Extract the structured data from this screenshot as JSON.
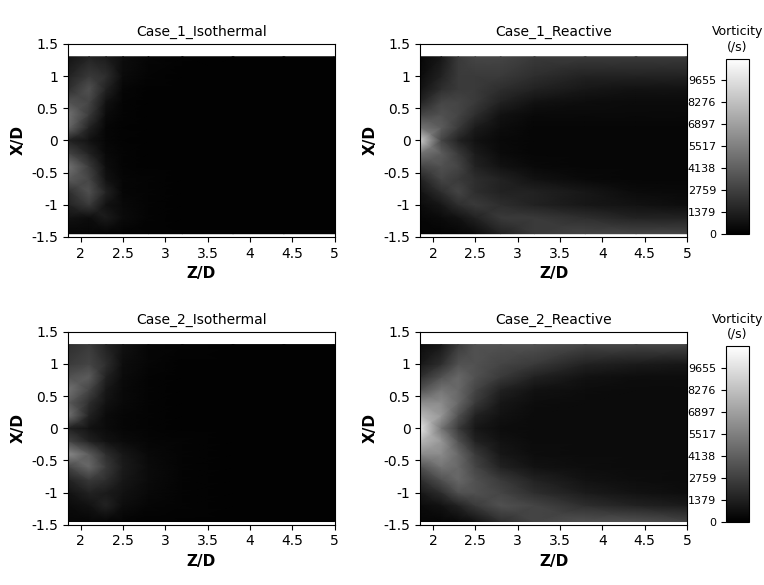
{
  "chart_data": [
    {
      "type": "heatmap",
      "title": "Case_1_Isothermal",
      "x_label": "Z/D",
      "y_label": "X/D",
      "xlim": [
        1.85,
        5
      ],
      "ylim": [
        -1.5,
        1.5
      ],
      "xticks": [
        2,
        2.5,
        3,
        3.5,
        4,
        4.5,
        5
      ],
      "yticks": [
        -1.5,
        -1,
        -0.5,
        0,
        0.5,
        1,
        1.5
      ],
      "x": [
        1.85,
        2.1,
        2.3,
        2.5,
        2.8,
        3.2,
        3.8,
        4.4,
        5.0
      ],
      "y": [
        -1.45,
        -1.2,
        -1.0,
        -0.8,
        -0.6,
        -0.4,
        -0.2,
        0,
        0.2,
        0.4,
        0.6,
        0.8,
        1.0,
        1.3
      ],
      "cells": [
        [
          300,
          300,
          200,
          150,
          100,
          100,
          100,
          100,
          100
        ],
        [
          800,
          600,
          1200,
          500,
          200,
          100,
          100,
          100,
          100
        ],
        [
          1500,
          2500,
          800,
          400,
          200,
          100,
          100,
          100,
          100
        ],
        [
          2000,
          3500,
          1500,
          300,
          200,
          100,
          100,
          100,
          100
        ],
        [
          4000,
          3000,
          800,
          300,
          200,
          100,
          100,
          100,
          100
        ],
        [
          5000,
          2500,
          600,
          200,
          100,
          100,
          100,
          100,
          100
        ],
        [
          3000,
          1500,
          400,
          200,
          100,
          100,
          100,
          100,
          100
        ],
        [
          1500,
          800,
          300,
          150,
          100,
          100,
          100,
          100,
          100
        ],
        [
          4500,
          1500,
          300,
          150,
          100,
          100,
          100,
          100,
          100
        ],
        [
          5000,
          2500,
          500,
          200,
          100,
          100,
          100,
          100,
          100
        ],
        [
          3500,
          3000,
          800,
          200,
          100,
          100,
          100,
          100,
          100
        ],
        [
          2000,
          3500,
          1500,
          300,
          100,
          100,
          100,
          100,
          100
        ],
        [
          1500,
          2500,
          2000,
          500,
          200,
          100,
          100,
          100,
          100
        ],
        [
          800,
          1500,
          1200,
          600,
          300,
          150,
          100,
          100,
          100
        ]
      ]
    },
    {
      "type": "heatmap",
      "title": "Case_1_Reactive",
      "x_label": "Z/D",
      "y_label": "X/D",
      "xlim": [
        1.85,
        5
      ],
      "ylim": [
        -1.5,
        1.5
      ],
      "xticks": [
        2,
        2.5,
        3,
        3.5,
        4,
        4.5,
        5
      ],
      "yticks": [
        -1.5,
        -1,
        -0.5,
        0,
        0.5,
        1,
        1.5
      ],
      "x": [
        1.85,
        2.1,
        2.3,
        2.5,
        2.8,
        3.2,
        3.8,
        4.4,
        5.0
      ],
      "y": [
        -1.45,
        -1.2,
        -1.0,
        -0.8,
        -0.6,
        -0.4,
        -0.2,
        0,
        0.2,
        0.4,
        0.6,
        0.8,
        1.0,
        1.3
      ],
      "cells": [
        [
          200,
          200,
          300,
          500,
          1500,
          2500,
          3000,
          3000,
          3000
        ],
        [
          300,
          500,
          800,
          1500,
          2500,
          2500,
          2000,
          1500,
          1500
        ],
        [
          500,
          1000,
          2000,
          2500,
          2000,
          1500,
          1000,
          800,
          600
        ],
        [
          800,
          2000,
          3000,
          2000,
          1500,
          1500,
          1000,
          500,
          400
        ],
        [
          1500,
          3000,
          2500,
          2000,
          1500,
          800,
          400,
          300,
          300
        ],
        [
          3000,
          3500,
          3000,
          1500,
          800,
          400,
          300,
          300,
          300
        ],
        [
          5000,
          4000,
          2500,
          1200,
          500,
          300,
          300,
          300,
          300
        ],
        [
          9000,
          3000,
          1500,
          800,
          400,
          300,
          300,
          300,
          300
        ],
        [
          5000,
          4000,
          2500,
          1200,
          600,
          300,
          300,
          300,
          300
        ],
        [
          3000,
          3500,
          3000,
          2000,
          800,
          400,
          400,
          400,
          400
        ],
        [
          1500,
          3000,
          3000,
          2500,
          1500,
          800,
          600,
          500,
          500
        ],
        [
          800,
          2000,
          2500,
          2500,
          2000,
          1500,
          1000,
          800,
          800
        ],
        [
          500,
          1500,
          2500,
          2500,
          2500,
          2000,
          1500,
          1500,
          1500
        ],
        [
          300,
          1000,
          2500,
          3000,
          3000,
          2500,
          2500,
          2500,
          2500
        ]
      ],
      "colorbar_label": "Vorticity\n(/s)",
      "colorbar_range": [
        0,
        11034
      ],
      "colorbar_ticks": [
        0,
        1379,
        2759,
        4138,
        5517,
        6897,
        8276,
        9655
      ]
    },
    {
      "type": "heatmap",
      "title": "Case_2_Isothermal",
      "x_label": "Z/D",
      "y_label": "X/D",
      "xlim": [
        1.85,
        5
      ],
      "ylim": [
        -1.5,
        1.5
      ],
      "xticks": [
        2,
        2.5,
        3,
        3.5,
        4,
        4.5,
        5
      ],
      "yticks": [
        -1.5,
        -1,
        -0.5,
        0,
        0.5,
        1,
        1.5
      ],
      "x": [
        1.85,
        2.1,
        2.3,
        2.5,
        2.8,
        3.2,
        3.8,
        4.4,
        5.0
      ],
      "y": [
        -1.45,
        -1.2,
        -1.0,
        -0.8,
        -0.6,
        -0.4,
        -0.2,
        0,
        0.2,
        0.4,
        0.6,
        0.8,
        1.0,
        1.3
      ],
      "cells": [
        [
          300,
          300,
          300,
          200,
          100,
          100,
          100,
          100,
          100
        ],
        [
          500,
          800,
          1500,
          600,
          300,
          200,
          100,
          100,
          100
        ],
        [
          800,
          1500,
          1200,
          800,
          400,
          200,
          100,
          100,
          100
        ],
        [
          1500,
          2500,
          2000,
          1000,
          500,
          200,
          100,
          100,
          100
        ],
        [
          3000,
          4500,
          2500,
          1200,
          500,
          200,
          100,
          100,
          100
        ],
        [
          6000,
          4000,
          2000,
          1000,
          400,
          200,
          100,
          100,
          100
        ],
        [
          3000,
          1500,
          800,
          500,
          300,
          200,
          100,
          100,
          100
        ],
        [
          1500,
          800,
          500,
          300,
          200,
          100,
          100,
          100,
          100
        ],
        [
          5000,
          1500,
          500,
          300,
          200,
          100,
          100,
          100,
          100
        ],
        [
          4000,
          2000,
          800,
          400,
          200,
          100,
          100,
          100,
          100
        ],
        [
          5000,
          3000,
          1000,
          400,
          200,
          100,
          100,
          100,
          100
        ],
        [
          3500,
          4000,
          1500,
          500,
          200,
          100,
          100,
          100,
          100
        ],
        [
          2500,
          3000,
          2000,
          600,
          300,
          100,
          100,
          100,
          100
        ],
        [
          2000,
          2500,
          1500,
          800,
          300,
          200,
          100,
          100,
          100
        ]
      ]
    },
    {
      "type": "heatmap",
      "title": "Case_2_Reactive",
      "x_label": "Z/D",
      "y_label": "X/D",
      "xlim": [
        1.85,
        5
      ],
      "ylim": [
        -1.5,
        1.5
      ],
      "xticks": [
        2,
        2.5,
        3,
        3.5,
        4,
        4.5,
        5
      ],
      "yticks": [
        -1.5,
        -1,
        -0.5,
        0,
        0.5,
        1,
        1.5
      ],
      "x": [
        1.85,
        2.1,
        2.3,
        2.5,
        2.8,
        3.2,
        3.8,
        4.4,
        5.0
      ],
      "y": [
        -1.45,
        -1.2,
        -1.0,
        -0.8,
        -0.6,
        -0.4,
        -0.2,
        0,
        0.2,
        0.4,
        0.6,
        0.8,
        1.0,
        1.3
      ],
      "cells": [
        [
          300,
          300,
          400,
          800,
          2000,
          3000,
          3500,
          3500,
          3000
        ],
        [
          500,
          800,
          1500,
          2500,
          3500,
          3000,
          2000,
          1500,
          1200
        ],
        [
          1000,
          2000,
          3500,
          3500,
          3000,
          2000,
          1200,
          800,
          600
        ],
        [
          2000,
          3500,
          4500,
          3500,
          2500,
          1500,
          800,
          600,
          500
        ],
        [
          3500,
          5000,
          4500,
          3000,
          1500,
          800,
          600,
          500,
          500
        ],
        [
          6000,
          6000,
          4500,
          2500,
          1000,
          600,
          500,
          500,
          500
        ],
        [
          8000,
          6500,
          3500,
          1500,
          800,
          500,
          500,
          500,
          500
        ],
        [
          10000,
          5000,
          2500,
          1000,
          600,
          500,
          500,
          500,
          500
        ],
        [
          8000,
          6500,
          3500,
          1500,
          800,
          500,
          500,
          500,
          500
        ],
        [
          6000,
          6000,
          4500,
          2500,
          1000,
          600,
          500,
          500,
          500
        ],
        [
          3500,
          5000,
          4500,
          3000,
          1500,
          800,
          600,
          500,
          500
        ],
        [
          2000,
          3500,
          4500,
          3500,
          2500,
          1500,
          800,
          600,
          600
        ],
        [
          1000,
          2000,
          3500,
          3500,
          3000,
          2500,
          1500,
          1200,
          1000
        ],
        [
          500,
          1000,
          2500,
          3500,
          3500,
          3500,
          3000,
          3000,
          3000
        ]
      ],
      "colorbar_label": "Vorticity\n(/s)",
      "colorbar_range": [
        0,
        11034
      ],
      "colorbar_ticks": [
        0,
        1379,
        2759,
        4138,
        5517,
        6897,
        8276,
        9655
      ]
    }
  ]
}
